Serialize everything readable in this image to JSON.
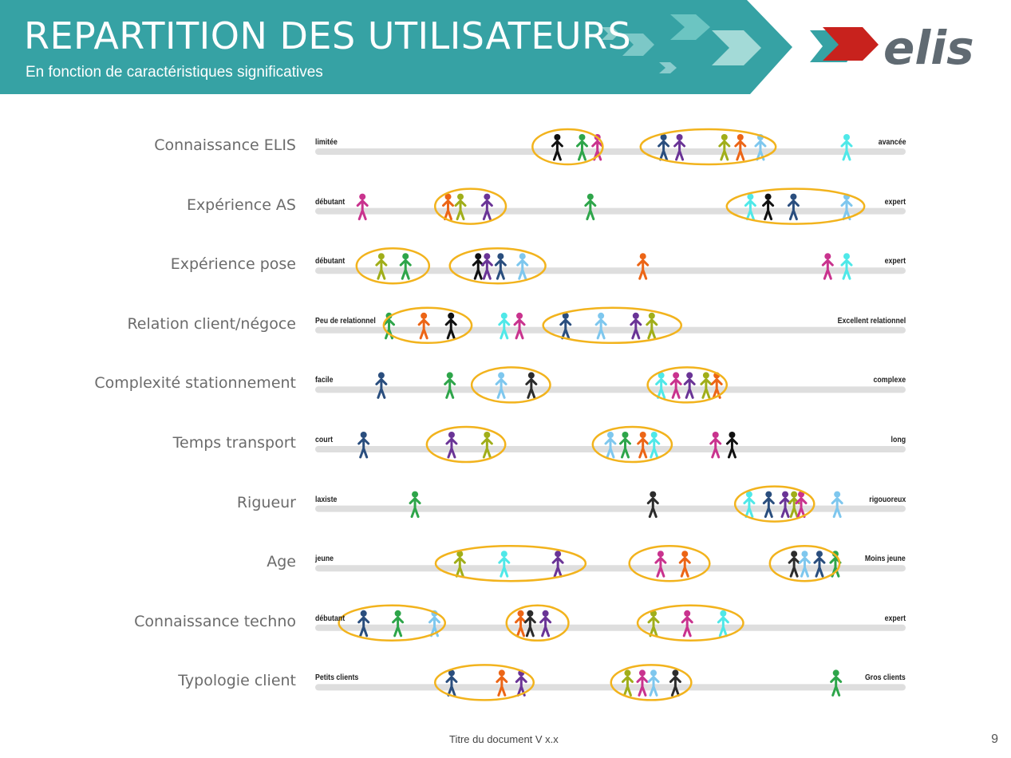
{
  "header": {
    "title": "REPARTITION DES UTILISATEURS",
    "subtitle": "En fonction de caractéristiques significatives",
    "logo_text": "elis",
    "band_color": "#36a2a4",
    "accent_color": "#c8221d",
    "logo_text_color": "#606a72"
  },
  "person_colors": {
    "black": "#111111",
    "green": "#2ea54a",
    "magenta": "#c9338e",
    "navy": "#2a4e7e",
    "purple": "#6a3496",
    "olive": "#a0ae1a",
    "orange": "#ec6516",
    "lightblue": "#7ec7ee",
    "cyan": "#4fe8e8",
    "darkgray": "#2c2c2c"
  },
  "ellipse_color": "#f2b31d",
  "bar_color": "#dedede",
  "rows": [
    {
      "label": "Connaissance ELIS",
      "left": "limitée",
      "right": "avancée",
      "people": [
        {
          "p": 0.41,
          "c": "black"
        },
        {
          "p": 0.452,
          "c": "green"
        },
        {
          "p": 0.478,
          "c": "magenta"
        },
        {
          "p": 0.59,
          "c": "navy"
        },
        {
          "p": 0.617,
          "c": "purple"
        },
        {
          "p": 0.693,
          "c": "olive"
        },
        {
          "p": 0.72,
          "c": "orange"
        },
        {
          "p": 0.754,
          "c": "lightblue"
        },
        {
          "p": 0.9,
          "c": "cyan"
        }
      ],
      "groups": [
        {
          "from": 0.368,
          "to": 0.487
        },
        {
          "from": 0.551,
          "to": 0.78
        }
      ]
    },
    {
      "label": "Expérience AS",
      "left": "débutant",
      "right": "expert",
      "people": [
        {
          "p": 0.08,
          "c": "magenta"
        },
        {
          "p": 0.225,
          "c": "orange"
        },
        {
          "p": 0.246,
          "c": "olive"
        },
        {
          "p": 0.291,
          "c": "purple"
        },
        {
          "p": 0.466,
          "c": "green"
        },
        {
          "p": 0.737,
          "c": "cyan"
        },
        {
          "p": 0.767,
          "c": "black"
        },
        {
          "p": 0.81,
          "c": "navy"
        },
        {
          "p": 0.9,
          "c": "lightblue"
        }
      ],
      "groups": [
        {
          "from": 0.203,
          "to": 0.323
        },
        {
          "from": 0.697,
          "to": 0.93
        }
      ]
    },
    {
      "label": "Expérience pose",
      "left": "débutant",
      "right": "expert",
      "people": [
        {
          "p": 0.112,
          "c": "olive"
        },
        {
          "p": 0.153,
          "c": "green"
        },
        {
          "p": 0.276,
          "c": "black"
        },
        {
          "p": 0.291,
          "c": "purple"
        },
        {
          "p": 0.314,
          "c": "navy"
        },
        {
          "p": 0.351,
          "c": "lightblue"
        },
        {
          "p": 0.555,
          "c": "orange"
        },
        {
          "p": 0.868,
          "c": "magenta"
        },
        {
          "p": 0.9,
          "c": "cyan"
        }
      ],
      "groups": [
        {
          "from": 0.07,
          "to": 0.193
        },
        {
          "from": 0.228,
          "to": 0.39
        }
      ]
    },
    {
      "label": "Relation client/négoce",
      "left": "Peu de relationnel",
      "right": "Excellent relationnel",
      "people": [
        {
          "p": 0.125,
          "c": "green"
        },
        {
          "p": 0.184,
          "c": "orange"
        },
        {
          "p": 0.23,
          "c": "black"
        },
        {
          "p": 0.32,
          "c": "cyan"
        },
        {
          "p": 0.346,
          "c": "magenta"
        },
        {
          "p": 0.424,
          "c": "navy"
        },
        {
          "p": 0.484,
          "c": "lightblue"
        },
        {
          "p": 0.543,
          "c": "purple"
        },
        {
          "p": 0.57,
          "c": "olive"
        }
      ],
      "groups": [
        {
          "from": 0.116,
          "to": 0.265
        },
        {
          "from": 0.386,
          "to": 0.62
        }
      ]
    },
    {
      "label": "Complexité stationnement",
      "left": "facile",
      "right": "complexe",
      "people": [
        {
          "p": 0.112,
          "c": "navy"
        },
        {
          "p": 0.228,
          "c": "green"
        },
        {
          "p": 0.315,
          "c": "lightblue"
        },
        {
          "p": 0.366,
          "c": "darkgray"
        },
        {
          "p": 0.586,
          "c": "cyan"
        },
        {
          "p": 0.611,
          "c": "magenta"
        },
        {
          "p": 0.634,
          "c": "purple"
        },
        {
          "p": 0.662,
          "c": "olive"
        },
        {
          "p": 0.68,
          "c": "orange"
        }
      ],
      "groups": [
        {
          "from": 0.265,
          "to": 0.398
        },
        {
          "from": 0.563,
          "to": 0.697
        }
      ]
    },
    {
      "label": "Temps transport",
      "left": "court",
      "right": "long",
      "people": [
        {
          "p": 0.082,
          "c": "navy"
        },
        {
          "p": 0.231,
          "c": "purple"
        },
        {
          "p": 0.291,
          "c": "olive"
        },
        {
          "p": 0.5,
          "c": "lightblue"
        },
        {
          "p": 0.525,
          "c": "green"
        },
        {
          "p": 0.555,
          "c": "orange"
        },
        {
          "p": 0.574,
          "c": "cyan"
        },
        {
          "p": 0.678,
          "c": "magenta"
        },
        {
          "p": 0.706,
          "c": "black"
        }
      ],
      "groups": [
        {
          "from": 0.189,
          "to": 0.322
        },
        {
          "from": 0.47,
          "to": 0.604
        }
      ]
    },
    {
      "label": "Rigueur",
      "left": "laxiste",
      "right": "rigouoreux",
      "people": [
        {
          "p": 0.169,
          "c": "green"
        },
        {
          "p": 0.572,
          "c": "darkgray"
        },
        {
          "p": 0.735,
          "c": "cyan"
        },
        {
          "p": 0.768,
          "c": "navy"
        },
        {
          "p": 0.796,
          "c": "purple"
        },
        {
          "p": 0.811,
          "c": "olive"
        },
        {
          "p": 0.823,
          "c": "magenta"
        },
        {
          "p": 0.884,
          "c": "lightblue"
        }
      ],
      "groups": [
        {
          "from": 0.711,
          "to": 0.845
        }
      ]
    },
    {
      "label": "Age",
      "left": "jeune",
      "right": "Moins jeune",
      "people": [
        {
          "p": 0.245,
          "c": "olive"
        },
        {
          "p": 0.32,
          "c": "cyan"
        },
        {
          "p": 0.411,
          "c": "purple"
        },
        {
          "p": 0.585,
          "c": "magenta"
        },
        {
          "p": 0.626,
          "c": "orange"
        },
        {
          "p": 0.811,
          "c": "darkgray"
        },
        {
          "p": 0.829,
          "c": "lightblue"
        },
        {
          "p": 0.854,
          "c": "navy"
        },
        {
          "p": 0.881,
          "c": "green"
        }
      ],
      "groups": [
        {
          "from": 0.204,
          "to": 0.458
        },
        {
          "from": 0.532,
          "to": 0.668
        },
        {
          "from": 0.77,
          "to": 0.888
        }
      ]
    },
    {
      "label": "Connaissance techno",
      "left": "débutant",
      "right": "expert",
      "people": [
        {
          "p": 0.082,
          "c": "navy"
        },
        {
          "p": 0.14,
          "c": "green"
        },
        {
          "p": 0.202,
          "c": "lightblue"
        },
        {
          "p": 0.348,
          "c": "orange"
        },
        {
          "p": 0.364,
          "c": "darkgray"
        },
        {
          "p": 0.39,
          "c": "purple"
        },
        {
          "p": 0.573,
          "c": "olive"
        },
        {
          "p": 0.63,
          "c": "magenta"
        },
        {
          "p": 0.691,
          "c": "cyan"
        }
      ],
      "groups": [
        {
          "from": 0.04,
          "to": 0.22
        },
        {
          "from": 0.324,
          "to": 0.429
        },
        {
          "from": 0.546,
          "to": 0.725
        }
      ]
    },
    {
      "label": "Typologie client",
      "left": "Petits clients",
      "right": "Gros clients",
      "people": [
        {
          "p": 0.231,
          "c": "navy"
        },
        {
          "p": 0.316,
          "c": "orange"
        },
        {
          "p": 0.349,
          "c": "purple"
        },
        {
          "p": 0.529,
          "c": "olive"
        },
        {
          "p": 0.554,
          "c": "magenta"
        },
        {
          "p": 0.573,
          "c": "lightblue"
        },
        {
          "p": 0.61,
          "c": "darkgray"
        },
        {
          "p": 0.882,
          "c": "green"
        }
      ],
      "groups": [
        {
          "from": 0.203,
          "to": 0.37
        },
        {
          "from": 0.501,
          "to": 0.637
        }
      ]
    }
  ],
  "footer": {
    "doc_title": "Titre du document  V x.x",
    "page_number": "9"
  }
}
